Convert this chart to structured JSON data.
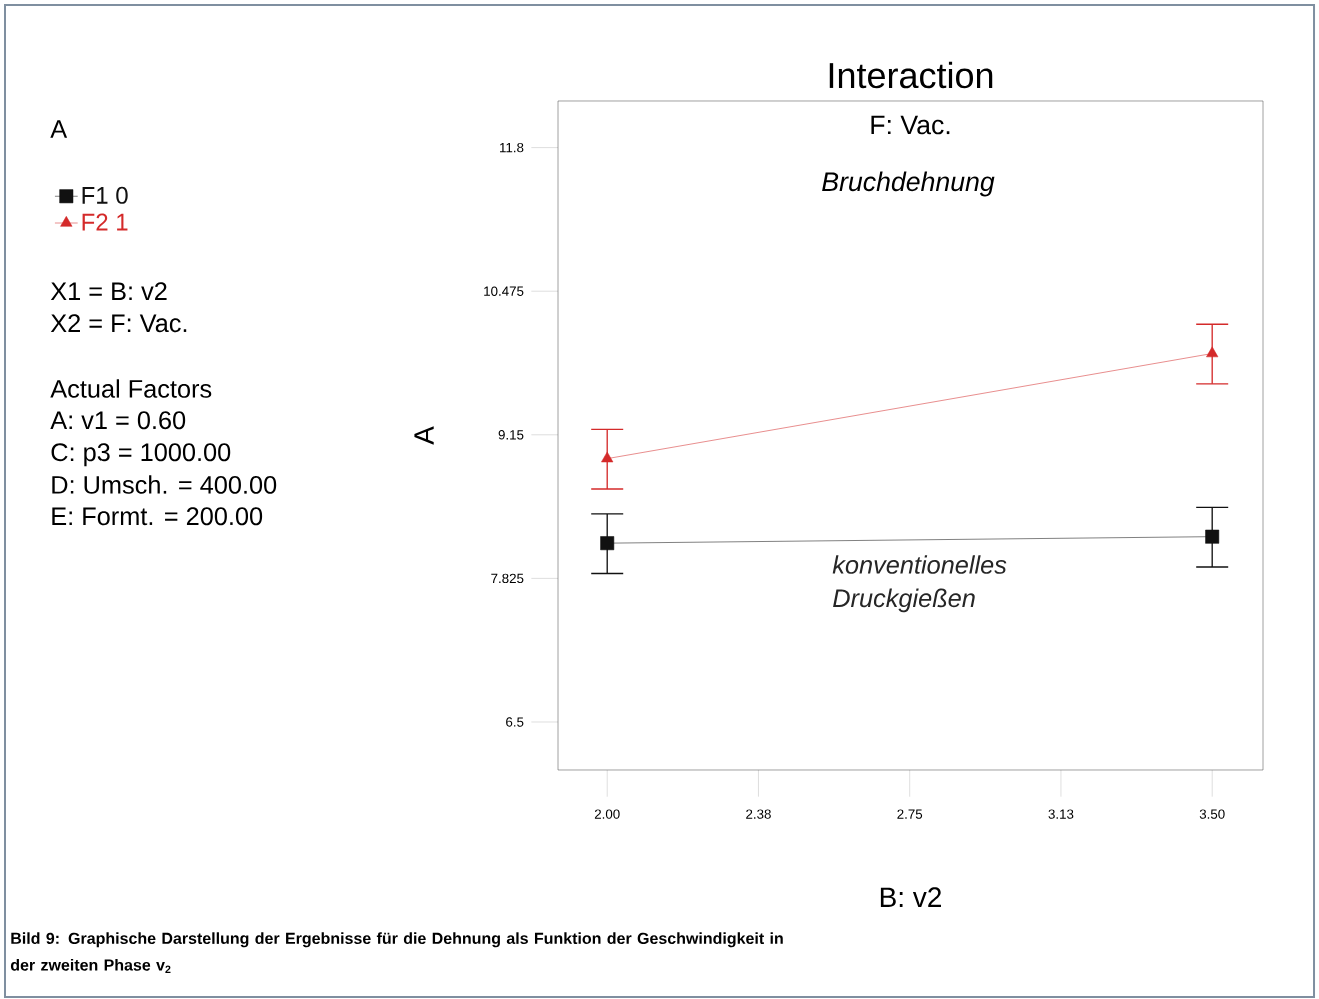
{
  "chart_data": {
    "type": "line",
    "title": "Interaction",
    "subtitle": "F: Vac.",
    "xlabel": "B: v2",
    "ylabel": "A",
    "x": [
      2.0,
      3.5
    ],
    "series": [
      {
        "name": "F1 0",
        "color": "#111111",
        "marker": "square",
        "values": [
          8.15,
          8.21
        ],
        "errors": [
          [
            7.87,
            8.42
          ],
          [
            7.93,
            8.48
          ]
        ]
      },
      {
        "name": "F2 1",
        "color": "#d42a2a",
        "marker": "triangle",
        "values": [
          8.93,
          9.9
        ],
        "errors": [
          [
            8.65,
            9.2
          ],
          [
            9.62,
            10.17
          ]
        ]
      }
    ],
    "xlim": [
      1.878,
      3.626
    ],
    "ylim": [
      6.057,
      12.23
    ],
    "xticks": [
      {
        "value": 2.0,
        "label": "2.00"
      },
      {
        "value": 2.375,
        "label": "2.38"
      },
      {
        "value": 2.75,
        "label": "2.75"
      },
      {
        "value": 3.125,
        "label": "3.13"
      },
      {
        "value": 3.5,
        "label": "3.50"
      }
    ],
    "yticks": [
      6.5,
      7.825,
      9.15,
      10.475,
      11.8
    ],
    "legend": "top left",
    "grid": false,
    "line_style": "solid",
    "annotations": [
      "A",
      "X1 = B: v2",
      "X2 = F: Vac.",
      "Actual Factors",
      "A: v1 = 0.60",
      "C: p3 = 1000.00",
      "D: Umsch. = 400.00",
      "E: Formt. = 200.00",
      "Bruchdehnung",
      "konventionelles Druckgießen",
      "Bild 9: Graphische Darstellung der Ergebnisse für die Dehnung als Funktion der Geschwindigkeit in der zweiten Phase v$_{2}$"
    ]
  }
}
